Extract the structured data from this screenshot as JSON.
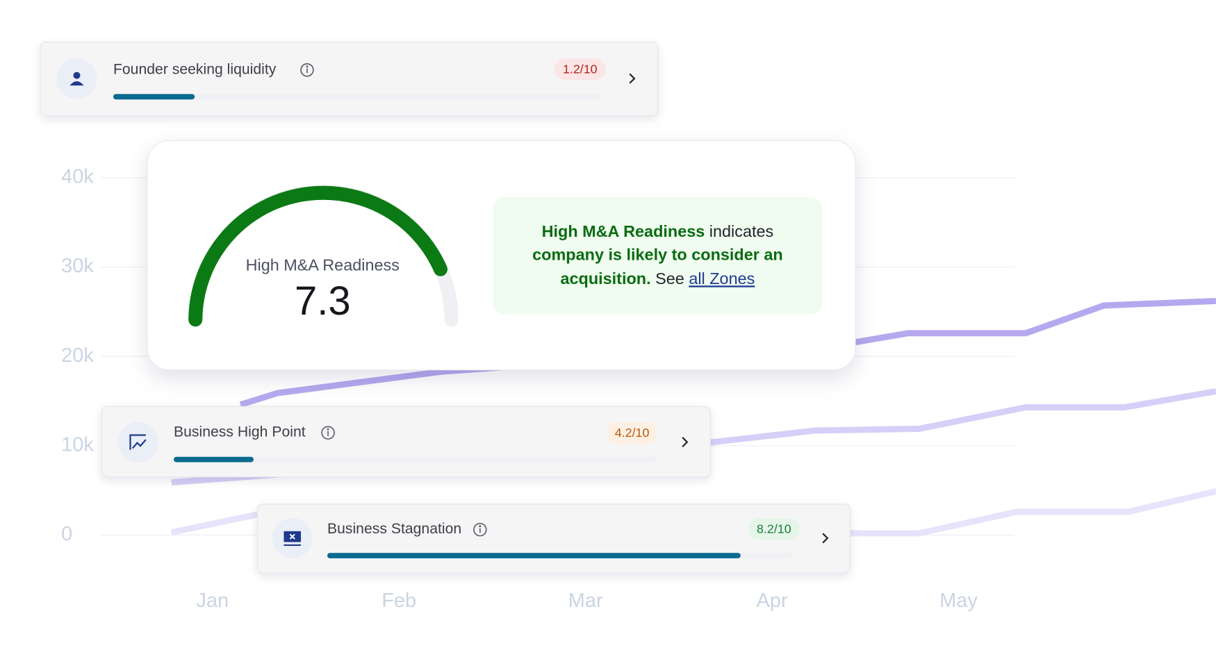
{
  "background_chart": {
    "type": "line",
    "categories": [
      "Jan",
      "Feb",
      "Mar",
      "Apr",
      "May"
    ],
    "ylim": [
      0,
      40000
    ],
    "yticks": [
      0,
      {
        "value": 10000,
        "label": "10k"
      },
      {
        "value": 20000,
        "label": "20k"
      },
      {
        "value": 30000,
        "label": "30k"
      },
      {
        "value": 40000,
        "label": "40k"
      }
    ],
    "grid": true,
    "series": [
      {
        "color": "#b6a8ef",
        "x": [
          0.15,
          0.35,
          1.23,
          3.45,
          3.73,
          4.36,
          4.78,
          5.38
        ],
        "values": [
          14600,
          15900,
          18300,
          21600,
          22600,
          22600,
          25700,
          26200
        ]
      },
      {
        "color": "#d6cff8",
        "x": [
          -0.22,
          2.68,
          3.23,
          3.79,
          4.36,
          4.89,
          5.38
        ],
        "values": [
          5900,
          10400,
          11700,
          11900,
          14300,
          14300,
          16100
        ]
      },
      {
        "color": "#e7e3fb",
        "x": [
          -0.22,
          0.24,
          3.43,
          3.79,
          4.31,
          4.91,
          5.38
        ],
        "values": [
          300,
          2300,
          200,
          200,
          2600,
          2600,
          4900
        ]
      }
    ]
  },
  "cards": [
    {
      "title": "Founder seeking liquidity",
      "score": "1.2/10"
    },
    {
      "title": "Business High Point",
      "score": "4.2/10"
    },
    {
      "title": "Business Stagnation",
      "score": "8.2/10"
    }
  ],
  "gauge": {
    "label": "High M&A Readiness",
    "value": "7.3"
  },
  "description": {
    "highlight": "High M&A Readiness",
    "text1": " indicates",
    "highlight2": "company is likely to consider an",
    "highlight3": "acquisition.",
    "text2": " See ",
    "link": "all Zones"
  }
}
